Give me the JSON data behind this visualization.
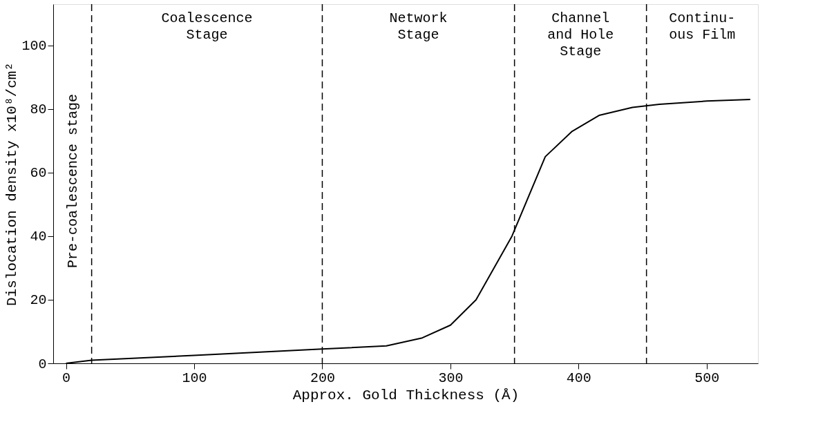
{
  "chart_data": {
    "type": "line",
    "xlabel": "Approx. Gold Thickness (Å)",
    "ylabel": "Dislocation density x10⁸/cm²",
    "x": [
      0,
      20,
      100,
      200,
      250,
      278,
      300,
      320,
      348,
      374,
      395,
      416,
      442,
      463,
      500,
      534
    ],
    "series": [
      {
        "color": "#000000",
        "values": [
          0,
          1,
          2.5,
          4.5,
          5.5,
          8,
          12,
          20,
          40,
          65,
          73,
          78,
          80.5,
          81.5,
          82.5,
          83
        ]
      }
    ],
    "xlim": [
      -10,
      540
    ],
    "xticks": [
      0,
      100,
      200,
      300,
      400,
      500
    ],
    "ylim": [
      0,
      113
    ],
    "yticks": [
      0,
      20,
      40,
      60,
      80,
      100
    ],
    "grid": false,
    "line_style": "solid",
    "ref_lines": [
      {
        "axis": "x",
        "value": 20,
        "line_style": "dashed"
      },
      {
        "axis": "x",
        "value": 200,
        "line_style": "dashed"
      },
      {
        "axis": "x",
        "value": 350,
        "line_style": "dashed"
      },
      {
        "axis": "x",
        "value": 453,
        "line_style": "dashed"
      }
    ],
    "annotations": [
      "Pre-coalescence stage",
      "Coalescence\nStage",
      "Network\nStage",
      "Channel\nand Hole\nStage",
      "Continu-\nous Film"
    ]
  }
}
